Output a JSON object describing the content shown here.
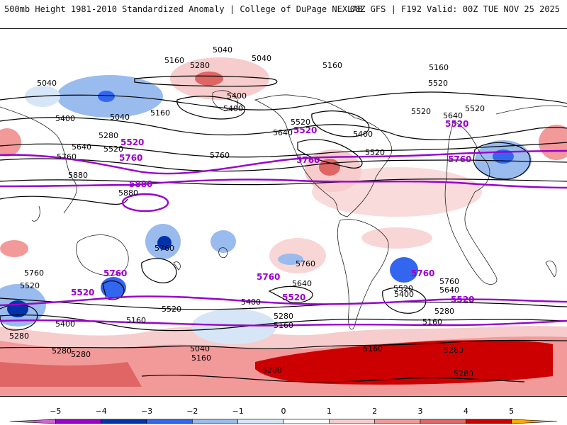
{
  "header": {
    "title_left": "500mb Height 1981-2010 Standardized Anomaly | College of DuPage NEXLAB",
    "title_right": "00Z GFS | F192 Valid: 00Z TUE NOV 25 2025"
  },
  "colors": {
    "ocean": "#ffffff",
    "land_line": "#222222",
    "contour": "#000000",
    "highlight": "#9900cc"
  },
  "contours": {
    "labels": [
      "5040",
      "5040",
      "5160",
      "5280",
      "5160",
      "5160",
      "5040",
      "5400",
      "5400",
      "5040",
      "5160",
      "5400",
      "5280",
      "5520",
      "5520",
      "5640",
      "5520",
      "5640",
      "5400",
      "5520",
      "5520",
      "5760",
      "5760",
      "5640",
      "5520",
      "5760",
      "5880",
      "5880",
      "5880",
      "5760",
      "5760",
      "5760",
      "5760",
      "5760",
      "5640",
      "5760",
      "5640",
      "5520",
      "5520",
      "5520",
      "5520",
      "5400",
      "5400",
      "5280",
      "5160",
      "5160",
      "5160",
      "5400",
      "5280",
      "5280",
      "5280",
      "5160",
      "5160",
      "5040",
      "5280",
      "5280",
      "5280",
      "5280",
      "5160",
      "5280"
    ]
  },
  "legend": {
    "ticks": [
      "−5",
      "−4",
      "−3",
      "−2",
      "−1",
      "0",
      "1",
      "2",
      "3",
      "4",
      "5"
    ],
    "colors": [
      "#cc66cc",
      "#9900cc",
      "#0033aa",
      "#3366ee",
      "#99bbee",
      "#d6e6f7",
      "#ffffff",
      "#f7cccc",
      "#f29999",
      "#e06666",
      "#cc0000",
      "#ff8800",
      "#ffaa00"
    ]
  }
}
